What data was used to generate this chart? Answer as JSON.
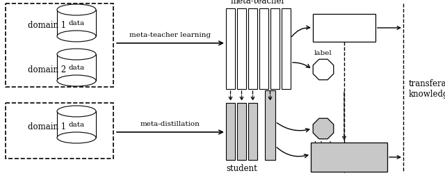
{
  "bg_color": "#ffffff",
  "fig_width": 6.4,
  "fig_height": 2.56,
  "dpi": 100,
  "domain1_label": "domain 1",
  "domain2_label": "domain 2",
  "domain1b_label": "domain 1",
  "arrow1_label": "meta-teacher learning",
  "arrow2_label": "meta-distillation",
  "meta_teacher_label": "meta-teacher",
  "student_label": "student",
  "transferable_label": "transferable\nknowledge",
  "font_size": 8.5,
  "font_size_label": 7.5,
  "font_size_small": 7.5
}
